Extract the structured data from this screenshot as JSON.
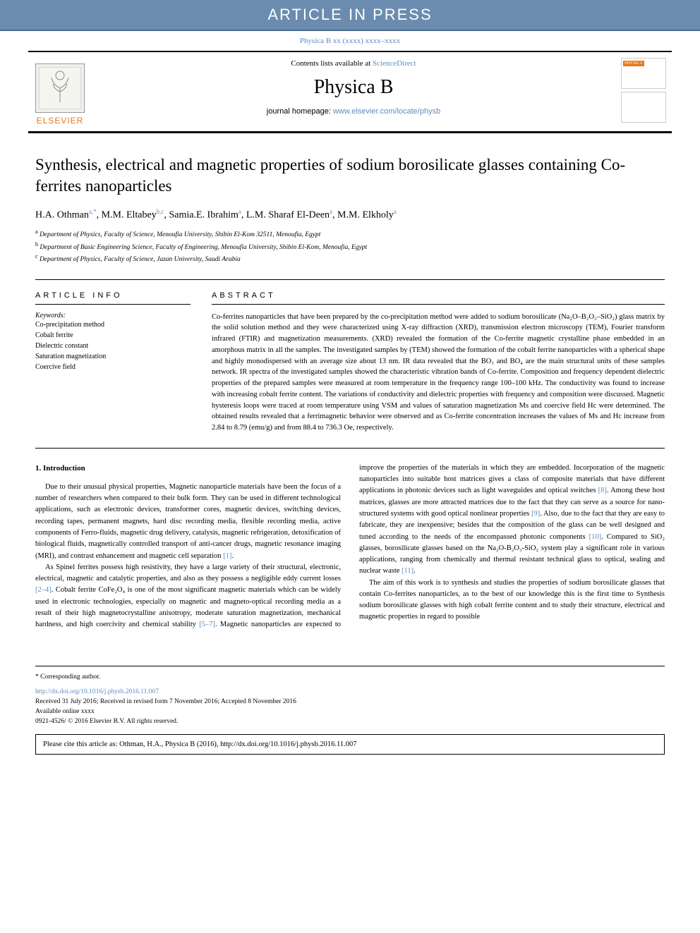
{
  "banner": {
    "text": "ARTICLE IN PRESS"
  },
  "citation_top": "Physica B xx (xxxx) xxxx–xxxx",
  "header": {
    "contents_prefix": "Contents lists available at ",
    "contents_link": "ScienceDirect",
    "journal_name": "Physica B",
    "homepage_prefix": "journal homepage: ",
    "homepage_url": "www.elsevier.com/locate/physb",
    "elsevier_label": "ELSEVIER",
    "cover_label": "PHYSICA"
  },
  "title": "Synthesis, electrical and magnetic properties of sodium borosilicate glasses containing Co-ferrites nanoparticles",
  "authors_html": "H.A. Othman<sup>a,*</sup>, M.M. Eltabey<sup>b,c</sup>, Samia.E. Ibrahim<sup>a</sup>, L.M. Sharaf El-Deen<sup>a</sup>, M.M. Elkholy<sup>a</sup>",
  "affiliations": [
    {
      "sup": "a",
      "text": "Department of Physics, Faculty of Science, Menoufia University, Shibin El-Kom 32511, Menoufia, Egypt"
    },
    {
      "sup": "b",
      "text": "Department of Basic Engineering Science, Faculty of Engineering, Menoufia University, Shibin El-Kom, Menoufia, Egypt"
    },
    {
      "sup": "c",
      "text": "Department of Physics, Faculty of Science, Jazan University, Saudi Arabia"
    }
  ],
  "info_label": "ARTICLE INFO",
  "abstract_label": "ABSTRACT",
  "keywords_label": "Keywords:",
  "keywords": [
    "Co-precipitation method",
    "Cobalt ferrite",
    "Dielectric constant",
    "Saturation magnetization",
    "Coercive field"
  ],
  "abstract": "Co-ferrites nanoparticles that have been prepared by the co-precipitation method were added to sodium borosilicate (Na₂O–B₂O₃–SiO₂) glass matrix by the solid solution method and they were characterized using X-ray diffraction (XRD), transmission electron microscopy (TEM), Fourier transform infrared (FTIR) and magnetization measurements. (XRD) revealed the formation of the Co-ferrite magnetic crystalline phase embedded in an amorphous matrix in all the samples. The investigated samples by (TEM) showed the formation of the cobalt ferrite nanoparticles with a spherical shape and highly monodispersed with an average size about 13 nm. IR data revealed that the BO₃ and BO₄ are the main structural units of these samples network. IR spectra of the investigated samples showed the characteristic vibration bands of Co-ferrite. Composition and frequency dependent dielectric properties of the prepared samples were measured at room temperature in the frequency range 100–100 kHz. The conductivity was found to increase with increasing cobalt ferrite content. The variations of conductivity and dielectric properties with frequency and composition were discussed. Magnetic hysteresis loops were traced at room temperature using VSM and values of saturation magnetization Ms and coercive field Hc were determined. The obtained results revealed that a ferrimagnetic behavior were observed and as Co-ferrite concentration increases the values of Ms and Hc increase from 2.84 to 8.79 (emu/g) and from 88.4 to 736.3 Oe, respectively.",
  "intro_heading": "1. Introduction",
  "body_paragraphs": [
    "Due to their unusual physical properties, Magnetic nanoparticle materials have been the focus of a number of researchers when compared to their bulk form. They can be used in different technological applications, such as electronic devices, transformer cores, magnetic devices, switching devices, recording tapes, permanent magnets, hard disc recording media, flexible recording media, active components of Ferro-fluids, magnetic drug delivery, catalysis, magnetic refrigeration, detoxification of biological fluids, magnetically controlled transport of anti-cancer drugs, magnetic resonance imaging (MRI), and contrast enhancement and magnetic cell separation [1].",
    "As Spinel ferrites possess high resistivity, they have a large variety of their structural, electronic, electrical, magnetic and catalytic properties, and also as they possess a negligible eddy current losses [2–4]. Cobalt ferrite CoFe₂O₄ is one of the most significant magnetic materials which can be widely used in electronic technologies, especially on magnetic and magneto-optical recording media as a result of their high magnetocrystalline anisotropy, moderate saturation magnetization, mechanical hardness, and high coercivity and chemical stability [5–7]. Magnetic nanoparticles are expected to improve the properties of the materials in which they are embedded. Incorporation of the magnetic nanoparticles into suitable host matrices gives a class of composite materials that have different applications in photonic devices such as light waveguides and optical switches [8]. Among these host matrices, glasses are more attracted matrices due to the fact that they can serve as a source for nano-structured systems with good optical nonlinear properties [9]. Also, due to the fact that they are easy to fabricate, they are inexpensive; besides that the composition of the glass can be well designed and tuned according to the needs of the encompassed photonic components [10]. Compared to SiO₂ glasses, borosilicate glasses based on the Na₂O-B₂O₃-SiO₂ system play a significant role in various applications, ranging from chemically and thermal resistant technical glass to optical, sealing and nuclear waste [11].",
    "The aim of this work is to synthesis and studies the properties of sodium borosilicate glasses that contain Co-ferrites nanoparticles, as to the best of our knowledge this is the first time to Synthesis sodium borosilicate glasses with high cobalt ferrite content and to study their structure, electrical and magnetic properties in regard to possible"
  ],
  "footer": {
    "corr": "* Corresponding author.",
    "doi": "http://dx.doi.org/10.1016/j.physb.2016.11.007",
    "history": "Received 31 July 2016; Received in revised form 7 November 2016; Accepted 8 November 2016",
    "online": "Available online xxxx",
    "copyright": "0921-4526/ © 2016 Elsevier B.V. All rights reserved."
  },
  "cite_box": "Please cite this article as: Othman, H.A., Physica B (2016), http://dx.doi.org/10.1016/j.physb.2016.11.007",
  "colors": {
    "banner_bg": "#6b8caf",
    "link": "#5b8bc4",
    "elsevier_orange": "#e67817"
  }
}
